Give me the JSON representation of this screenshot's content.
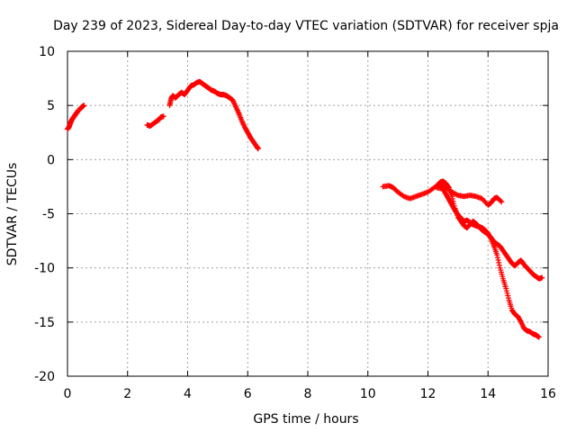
{
  "chart_data": {
    "type": "scatter",
    "title": "Day 239 of 2023, Sidereal Day-to-day VTEC variation (SDTVAR) for receiver spja",
    "xlabel": "GPS time / hours",
    "ylabel": "SDTVAR / TECUs",
    "xlim": [
      0,
      16
    ],
    "ylim": [
      -20,
      10
    ],
    "xticks": [
      0,
      2,
      4,
      6,
      8,
      10,
      12,
      14,
      16
    ],
    "yticks": [
      -20,
      -15,
      -10,
      -5,
      0,
      5,
      10
    ],
    "xtick_labels": [
      "0",
      "2",
      "4",
      "6",
      "8",
      "10",
      "12",
      "14",
      "16"
    ],
    "ytick_labels": [
      "-20",
      "-15",
      "-10",
      "-5",
      "0",
      "5",
      "10"
    ],
    "grid": true,
    "marker": "+",
    "color": "#ff0000",
    "series": [
      {
        "name": "arc-1",
        "points": [
          [
            0.0,
            2.8
          ],
          [
            0.05,
            3.0
          ],
          [
            0.1,
            3.4
          ],
          [
            0.15,
            3.7
          ],
          [
            0.2,
            3.9
          ],
          [
            0.25,
            4.1
          ],
          [
            0.3,
            4.3
          ],
          [
            0.35,
            4.5
          ],
          [
            0.4,
            4.6
          ],
          [
            0.45,
            4.8
          ],
          [
            0.5,
            4.9
          ],
          [
            0.55,
            5.0
          ]
        ]
      },
      {
        "name": "arc-2",
        "points": [
          [
            2.65,
            3.2
          ],
          [
            2.75,
            3.1
          ],
          [
            2.85,
            3.3
          ],
          [
            2.95,
            3.5
          ],
          [
            3.05,
            3.7
          ],
          [
            3.1,
            3.9
          ],
          [
            3.2,
            4.0
          ]
        ]
      },
      {
        "name": "arc-3",
        "points": [
          [
            3.4,
            5.0
          ],
          [
            3.45,
            5.6
          ],
          [
            3.5,
            5.9
          ],
          [
            3.6,
            5.7
          ],
          [
            3.7,
            6.0
          ],
          [
            3.8,
            6.2
          ],
          [
            3.9,
            6.0
          ],
          [
            4.0,
            6.4
          ],
          [
            4.1,
            6.8
          ],
          [
            4.2,
            6.9
          ],
          [
            4.3,
            7.1
          ],
          [
            4.4,
            7.2
          ],
          [
            4.5,
            7.0
          ],
          [
            4.6,
            6.8
          ],
          [
            4.7,
            6.6
          ],
          [
            4.8,
            6.4
          ],
          [
            4.9,
            6.3
          ],
          [
            5.0,
            6.1
          ],
          [
            5.1,
            6.0
          ],
          [
            5.2,
            6.0
          ],
          [
            5.3,
            5.9
          ],
          [
            5.4,
            5.7
          ],
          [
            5.5,
            5.5
          ],
          [
            5.6,
            4.9
          ],
          [
            5.7,
            4.3
          ],
          [
            5.8,
            3.6
          ],
          [
            5.9,
            3.0
          ],
          [
            6.0,
            2.5
          ],
          [
            6.1,
            2.0
          ],
          [
            6.2,
            1.6
          ],
          [
            6.3,
            1.2
          ],
          [
            6.35,
            1.0
          ]
        ]
      },
      {
        "name": "arc-4",
        "points": [
          [
            10.5,
            -2.5
          ],
          [
            10.7,
            -2.4
          ],
          [
            10.85,
            -2.6
          ],
          [
            11.0,
            -3.0
          ],
          [
            11.2,
            -3.4
          ],
          [
            11.4,
            -3.6
          ],
          [
            11.6,
            -3.4
          ],
          [
            11.8,
            -3.2
          ],
          [
            12.0,
            -3.0
          ],
          [
            12.2,
            -2.6
          ],
          [
            12.4,
            -2.3
          ],
          [
            12.6,
            -2.6
          ],
          [
            12.8,
            -3.0
          ],
          [
            13.0,
            -3.3
          ],
          [
            13.2,
            -3.4
          ],
          [
            13.4,
            -3.3
          ],
          [
            13.6,
            -3.4
          ],
          [
            13.8,
            -3.6
          ],
          [
            14.0,
            -4.2
          ],
          [
            14.1,
            -4.0
          ],
          [
            14.2,
            -3.6
          ],
          [
            14.3,
            -3.5
          ],
          [
            14.45,
            -3.9
          ]
        ]
      },
      {
        "name": "arc-5",
        "points": [
          [
            12.3,
            -2.4
          ],
          [
            12.4,
            -2.1
          ],
          [
            12.5,
            -2.0
          ],
          [
            12.6,
            -2.2
          ],
          [
            12.7,
            -2.6
          ],
          [
            12.8,
            -3.4
          ],
          [
            12.9,
            -4.5
          ],
          [
            13.0,
            -5.3
          ],
          [
            13.1,
            -5.7
          ],
          [
            13.2,
            -6.1
          ],
          [
            13.3,
            -6.3
          ],
          [
            13.4,
            -6.0
          ],
          [
            13.5,
            -5.7
          ],
          [
            13.6,
            -5.9
          ],
          [
            13.7,
            -6.2
          ],
          [
            13.8,
            -6.3
          ],
          [
            13.9,
            -6.5
          ],
          [
            14.0,
            -6.8
          ],
          [
            14.1,
            -7.3
          ],
          [
            14.2,
            -8.0
          ],
          [
            14.3,
            -8.8
          ],
          [
            14.4,
            -10.0
          ],
          [
            14.5,
            -11.0
          ],
          [
            14.6,
            -11.9
          ],
          [
            14.7,
            -13.0
          ],
          [
            14.8,
            -13.9
          ],
          [
            14.9,
            -14.3
          ],
          [
            15.0,
            -14.5
          ],
          [
            15.1,
            -15.0
          ],
          [
            15.2,
            -15.6
          ],
          [
            15.3,
            -15.8
          ],
          [
            15.4,
            -15.9
          ],
          [
            15.5,
            -16.1
          ],
          [
            15.6,
            -16.2
          ],
          [
            15.7,
            -16.4
          ]
        ]
      },
      {
        "name": "arc-6",
        "points": [
          [
            12.3,
            -2.6
          ],
          [
            12.5,
            -2.7
          ],
          [
            12.6,
            -3.2
          ],
          [
            12.7,
            -3.7
          ],
          [
            12.8,
            -4.2
          ],
          [
            12.9,
            -4.7
          ],
          [
            13.0,
            -5.1
          ],
          [
            13.1,
            -5.4
          ],
          [
            13.2,
            -5.7
          ],
          [
            13.3,
            -5.6
          ],
          [
            13.4,
            -5.8
          ],
          [
            13.5,
            -6.0
          ],
          [
            13.6,
            -6.1
          ],
          [
            13.7,
            -6.2
          ],
          [
            13.8,
            -6.5
          ],
          [
            13.9,
            -6.7
          ],
          [
            14.0,
            -6.9
          ],
          [
            14.1,
            -7.2
          ],
          [
            14.2,
            -7.6
          ],
          [
            14.3,
            -7.8
          ],
          [
            14.4,
            -8.0
          ],
          [
            14.5,
            -8.4
          ],
          [
            14.6,
            -8.8
          ],
          [
            14.7,
            -9.2
          ],
          [
            14.8,
            -9.6
          ],
          [
            14.9,
            -9.8
          ],
          [
            15.0,
            -9.5
          ],
          [
            15.1,
            -9.3
          ],
          [
            15.2,
            -9.7
          ],
          [
            15.3,
            -10.0
          ],
          [
            15.4,
            -10.3
          ],
          [
            15.5,
            -10.6
          ],
          [
            15.6,
            -10.8
          ],
          [
            15.7,
            -11.0
          ],
          [
            15.8,
            -10.9
          ]
        ]
      }
    ]
  }
}
